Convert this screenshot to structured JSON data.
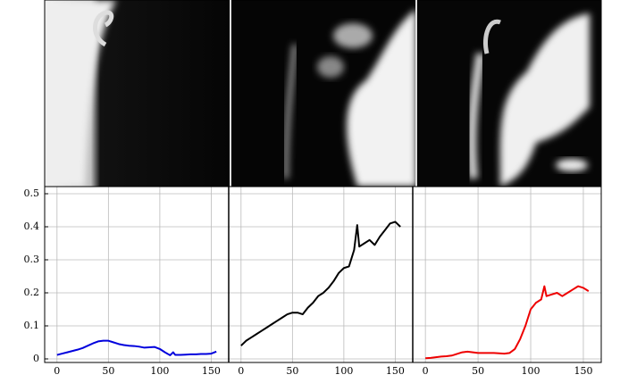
{
  "chart_data": [
    {
      "type": "line",
      "xlim": [
        -12,
        167
      ],
      "ylim": [
        0,
        0.5
      ],
      "xticks": [
        0,
        50,
        100,
        150
      ],
      "yticks": [
        0,
        0.1,
        0.2,
        0.3,
        0.4,
        0.5
      ],
      "grid": true,
      "x": [
        0,
        5,
        10,
        15,
        20,
        25,
        30,
        35,
        40,
        45,
        50,
        55,
        60,
        65,
        70,
        75,
        80,
        85,
        90,
        95,
        100,
        105,
        110,
        113,
        115,
        120,
        125,
        130,
        135,
        140,
        145,
        150,
        155
      ],
      "series": [
        {
          "color": "#0000dd",
          "values": [
            0.012,
            0.016,
            0.02,
            0.024,
            0.028,
            0.033,
            0.04,
            0.047,
            0.053,
            0.055,
            0.055,
            0.05,
            0.045,
            0.042,
            0.04,
            0.039,
            0.037,
            0.034,
            0.035,
            0.036,
            0.03,
            0.02,
            0.011,
            0.02,
            0.012,
            0.012,
            0.013,
            0.014,
            0.014,
            0.015,
            0.015,
            0.016,
            0.022
          ]
        }
      ]
    },
    {
      "type": "line",
      "xlim": [
        -12,
        167
      ],
      "ylim": [
        0,
        0.5
      ],
      "xticks": [
        0,
        50,
        100,
        150
      ],
      "yticks": [
        0,
        0.1,
        0.2,
        0.3,
        0.4,
        0.5
      ],
      "grid": true,
      "x": [
        0,
        5,
        10,
        15,
        20,
        25,
        30,
        35,
        40,
        45,
        50,
        55,
        60,
        65,
        70,
        75,
        80,
        85,
        90,
        95,
        100,
        105,
        110,
        113,
        115,
        120,
        125,
        130,
        135,
        140,
        145,
        150,
        155
      ],
      "series": [
        {
          "color": "#000000",
          "values": [
            0.04,
            0.055,
            0.065,
            0.075,
            0.085,
            0.095,
            0.105,
            0.115,
            0.125,
            0.135,
            0.14,
            0.14,
            0.135,
            0.155,
            0.17,
            0.19,
            0.2,
            0.215,
            0.235,
            0.26,
            0.275,
            0.28,
            0.33,
            0.405,
            0.34,
            0.35,
            0.36,
            0.345,
            0.37,
            0.39,
            0.41,
            0.415,
            0.4
          ]
        }
      ]
    },
    {
      "type": "line",
      "xlim": [
        -12,
        167
      ],
      "ylim": [
        0,
        0.5
      ],
      "xticks": [
        0,
        50,
        100,
        150
      ],
      "yticks": [
        0,
        0.1,
        0.2,
        0.3,
        0.4,
        0.5
      ],
      "grid": true,
      "x": [
        0,
        5,
        10,
        15,
        20,
        25,
        30,
        35,
        40,
        45,
        50,
        55,
        60,
        65,
        70,
        75,
        80,
        85,
        90,
        95,
        100,
        105,
        110,
        113,
        115,
        120,
        125,
        130,
        135,
        140,
        145,
        150,
        155
      ],
      "series": [
        {
          "color": "#ee0000",
          "values": [
            0.002,
            0.003,
            0.005,
            0.007,
            0.008,
            0.01,
            0.015,
            0.02,
            0.022,
            0.02,
            0.018,
            0.018,
            0.018,
            0.018,
            0.017,
            0.016,
            0.018,
            0.03,
            0.06,
            0.1,
            0.15,
            0.17,
            0.18,
            0.22,
            0.19,
            0.195,
            0.2,
            0.19,
            0.2,
            0.21,
            0.22,
            0.215,
            0.205
          ]
        }
      ]
    }
  ]
}
